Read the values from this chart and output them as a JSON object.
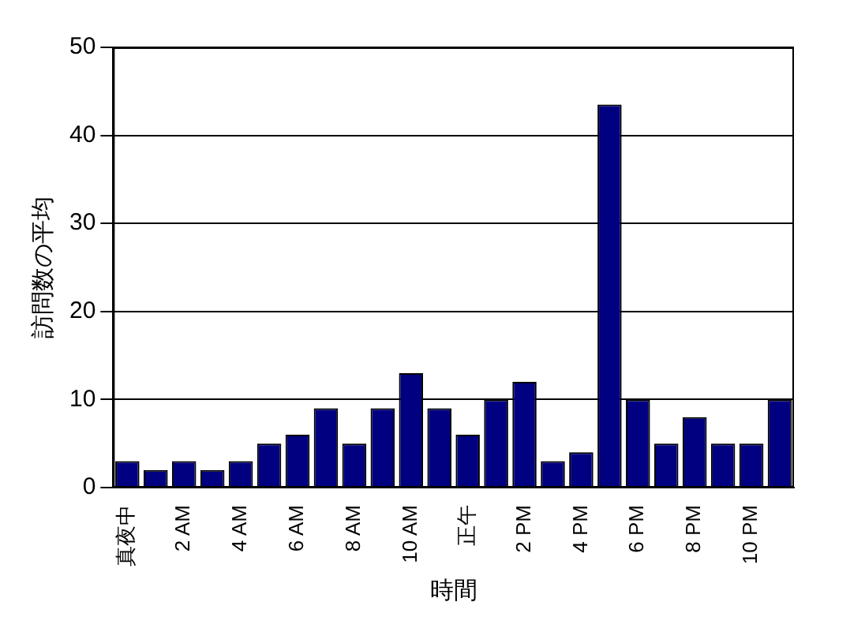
{
  "chart_data": {
    "type": "bar",
    "xlabel": "時間",
    "ylabel": "訪問数の平均",
    "categories": [
      "真夜中",
      null,
      "2 AM",
      null,
      "4 AM",
      null,
      "6 AM",
      null,
      "8 AM",
      null,
      "10 AM",
      null,
      "正午",
      null,
      "2 PM",
      null,
      "4 PM",
      null,
      "6 PM",
      null,
      "8 PM",
      null,
      "10 PM",
      null
    ],
    "values": [
      3,
      2,
      3,
      2,
      3,
      5,
      6,
      9,
      5,
      9,
      13,
      9,
      6,
      10,
      12,
      3,
      4,
      43.5,
      10,
      5,
      8,
      5,
      5,
      10
    ],
    "color": "#000080",
    "ylim": [
      0,
      50
    ],
    "yticks": [
      0,
      10,
      20,
      30,
      40,
      50
    ],
    "grid": "y"
  }
}
